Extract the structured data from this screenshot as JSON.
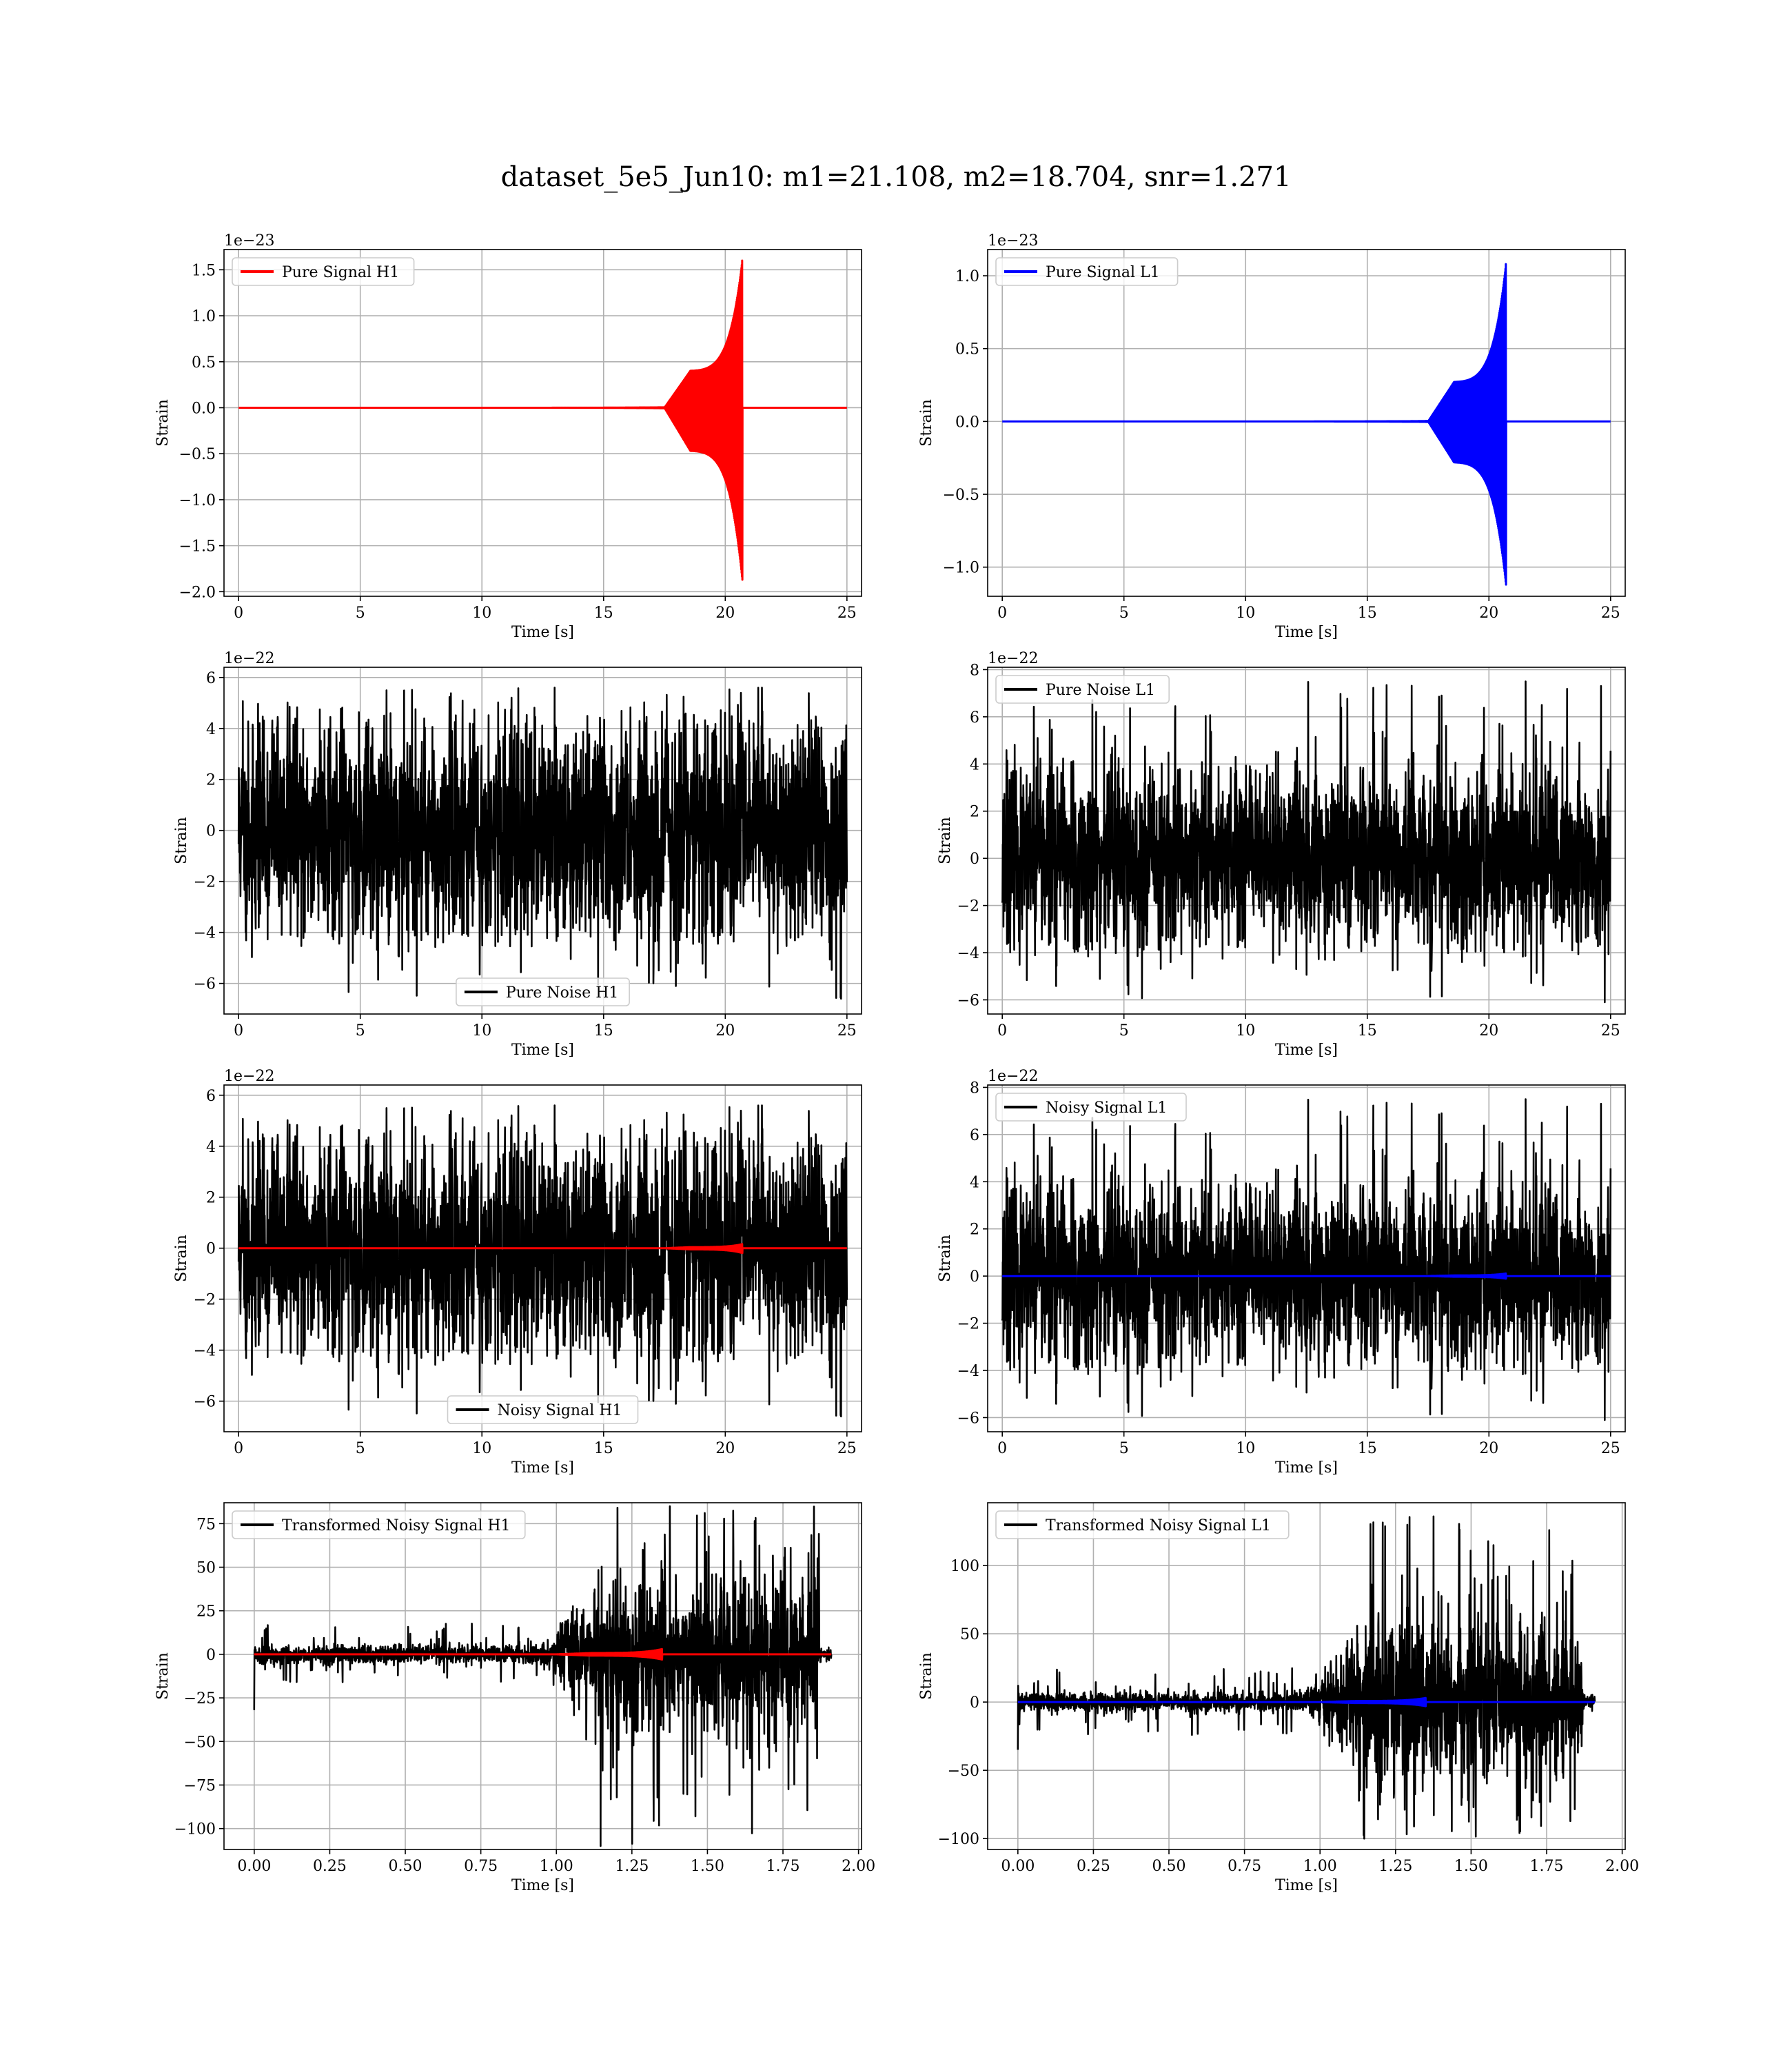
{
  "figure": {
    "title": "dataset_5e5_Jun10: m1=21.108, m2=18.704, snr=1.271"
  },
  "chart_data": [
    {
      "id": "pure-signal-h1",
      "type": "line",
      "xlabel": "Time [s]",
      "ylabel": "Strain",
      "exponent_label": "1e−23",
      "xlim": [
        -0.6,
        25.6
      ],
      "ylim": [
        -2.05,
        1.72
      ],
      "xticks": [
        0,
        5,
        10,
        15,
        20,
        25
      ],
      "xtick_labels": [
        "0",
        "5",
        "10",
        "15",
        "20",
        "25"
      ],
      "yticks": [
        -2.0,
        -1.5,
        -1.0,
        -0.5,
        0.0,
        0.5,
        1.0,
        1.5
      ],
      "ytick_labels": [
        "−2.0",
        "−1.5",
        "−1.0",
        "−0.5",
        "0.0",
        "0.5",
        "1.0",
        "1.5"
      ],
      "grid": true,
      "legend": "upper left",
      "series": [
        {
          "name": "Pure Signal H1",
          "color": "#ff0000",
          "kind": "chirp",
          "x_range": [
            0,
            25
          ],
          "merger_time": 20.7,
          "peak_pos": 1.6,
          "peak_neg": -1.87,
          "envelope_start": 17.5
        }
      ]
    },
    {
      "id": "pure-signal-l1",
      "type": "line",
      "xlabel": "Time [s]",
      "ylabel": "Strain",
      "exponent_label": "1e−23",
      "xlim": [
        -0.6,
        25.6
      ],
      "ylim": [
        -1.2,
        1.18
      ],
      "xticks": [
        0,
        5,
        10,
        15,
        20,
        25
      ],
      "xtick_labels": [
        "0",
        "5",
        "10",
        "15",
        "20",
        "25"
      ],
      "yticks": [
        -1.0,
        -0.5,
        0.0,
        0.5,
        1.0
      ],
      "ytick_labels": [
        "−1.0",
        "−0.5",
        "0.0",
        "0.5",
        "1.0"
      ],
      "grid": true,
      "legend": "upper left",
      "series": [
        {
          "name": "Pure Signal L1",
          "color": "#0000ff",
          "kind": "chirp",
          "x_range": [
            0,
            25
          ],
          "merger_time": 20.7,
          "peak_pos": 1.08,
          "peak_neg": -1.12,
          "envelope_start": 17.5
        }
      ]
    },
    {
      "id": "pure-noise-h1",
      "type": "line",
      "xlabel": "Time [s]",
      "ylabel": "Strain",
      "exponent_label": "1e−22",
      "xlim": [
        -0.6,
        25.6
      ],
      "ylim": [
        -7.2,
        6.4
      ],
      "xticks": [
        0,
        5,
        10,
        15,
        20,
        25
      ],
      "xtick_labels": [
        "0",
        "5",
        "10",
        "15",
        "20",
        "25"
      ],
      "yticks": [
        -6,
        -4,
        -2,
        0,
        2,
        4,
        6
      ],
      "ytick_labels": [
        "−6",
        "−4",
        "−2",
        "0",
        "2",
        "4",
        "6"
      ],
      "grid": true,
      "legend": "lower center",
      "series": [
        {
          "name": "Pure Noise H1",
          "color": "#000000",
          "kind": "noise",
          "x_range": [
            0,
            25
          ],
          "band": 3.8,
          "max": 5.6,
          "min": -6.6,
          "seed": 11
        }
      ]
    },
    {
      "id": "pure-noise-l1",
      "type": "line",
      "xlabel": "Time [s]",
      "ylabel": "Strain",
      "exponent_label": "1e−22",
      "xlim": [
        -0.6,
        25.6
      ],
      "ylim": [
        -6.6,
        8.1
      ],
      "xticks": [
        0,
        5,
        10,
        15,
        20,
        25
      ],
      "xtick_labels": [
        "0",
        "5",
        "10",
        "15",
        "20",
        "25"
      ],
      "yticks": [
        -6,
        -4,
        -2,
        0,
        2,
        4,
        6,
        8
      ],
      "ytick_labels": [
        "−6",
        "−4",
        "−2",
        "0",
        "2",
        "4",
        "6",
        "8"
      ],
      "grid": true,
      "legend": "upper left",
      "series": [
        {
          "name": "Pure Noise L1",
          "color": "#000000",
          "kind": "noise",
          "x_range": [
            0,
            25
          ],
          "band": 3.4,
          "max": 7.5,
          "min": -6.1,
          "seed": 23
        }
      ]
    },
    {
      "id": "noisy-signal-h1",
      "type": "line",
      "xlabel": "Time [s]",
      "ylabel": "Strain",
      "exponent_label": "1e−22",
      "xlim": [
        -0.6,
        25.6
      ],
      "ylim": [
        -7.2,
        6.4
      ],
      "xticks": [
        0,
        5,
        10,
        15,
        20,
        25
      ],
      "xtick_labels": [
        "0",
        "5",
        "10",
        "15",
        "20",
        "25"
      ],
      "yticks": [
        -6,
        -4,
        -2,
        0,
        2,
        4,
        6
      ],
      "ytick_labels": [
        "−6",
        "−4",
        "−2",
        "0",
        "2",
        "4",
        "6"
      ],
      "grid": true,
      "legend": "lower center",
      "series": [
        {
          "name": "Noisy Signal H1",
          "color": "#000000",
          "kind": "noise",
          "x_range": [
            0,
            25
          ],
          "band": 3.8,
          "max": 5.6,
          "min": -6.6,
          "seed": 11
        },
        {
          "name": "",
          "color": "#ff0000",
          "kind": "chirp",
          "x_range": [
            0,
            25
          ],
          "merger_time": 20.7,
          "peak_pos": 0.16,
          "peak_neg": -0.19,
          "envelope_start": 17.5
        }
      ]
    },
    {
      "id": "noisy-signal-l1",
      "type": "line",
      "xlabel": "Time [s]",
      "ylabel": "Strain",
      "exponent_label": "1e−22",
      "xlim": [
        -0.6,
        25.6
      ],
      "ylim": [
        -6.6,
        8.1
      ],
      "xticks": [
        0,
        5,
        10,
        15,
        20,
        25
      ],
      "xtick_labels": [
        "0",
        "5",
        "10",
        "15",
        "20",
        "25"
      ],
      "yticks": [
        -6,
        -4,
        -2,
        0,
        2,
        4,
        6,
        8
      ],
      "ytick_labels": [
        "−6",
        "−4",
        "−2",
        "0",
        "2",
        "4",
        "6",
        "8"
      ],
      "grid": true,
      "legend": "upper left",
      "series": [
        {
          "name": "Noisy Signal L1",
          "color": "#000000",
          "kind": "noise",
          "x_range": [
            0,
            25
          ],
          "band": 3.4,
          "max": 7.5,
          "min": -6.1,
          "seed": 23
        },
        {
          "name": "",
          "color": "#0000ff",
          "kind": "chirp",
          "x_range": [
            0,
            25
          ],
          "merger_time": 20.7,
          "peak_pos": 0.11,
          "peak_neg": -0.11,
          "envelope_start": 17.5
        }
      ]
    },
    {
      "id": "transformed-noisy-signal-h1",
      "type": "line",
      "xlabel": "Time [s]",
      "ylabel": "Strain",
      "exponent_label": "",
      "xlim": [
        -0.1,
        2.01
      ],
      "ylim": [
        -112,
        87
      ],
      "xticks": [
        0.0,
        0.25,
        0.5,
        0.75,
        1.0,
        1.25,
        1.5,
        1.75,
        2.0
      ],
      "xtick_labels": [
        "0.00",
        "0.25",
        "0.50",
        "0.75",
        "1.00",
        "1.25",
        "1.50",
        "1.75",
        "2.00"
      ],
      "yticks": [
        -100,
        -75,
        -50,
        -25,
        0,
        25,
        50,
        75
      ],
      "ytick_labels": [
        "−100",
        "−75",
        "−50",
        "−25",
        "0",
        "25",
        "50",
        "75"
      ],
      "grid": true,
      "legend": "upper left",
      "series": [
        {
          "name": "Transformed Noisy Signal H1",
          "color": "#000000",
          "kind": "whitened",
          "x_range": [
            0,
            1.91
          ],
          "cutoff": 1.87,
          "rise_start": 0.95,
          "rise_end": 1.12,
          "low_band": 5,
          "high_band": 35,
          "max": 85,
          "min": -110,
          "start_spike": -32,
          "seed": 5
        },
        {
          "name": "",
          "color": "#ff0000",
          "kind": "chirp",
          "x_range": [
            0,
            1.91
          ],
          "merger_time": 1.35,
          "peak_pos": 3.0,
          "peak_neg": -3.0,
          "envelope_start": 1.0
        }
      ]
    },
    {
      "id": "transformed-noisy-signal-l1",
      "type": "line",
      "xlabel": "Time [s]",
      "ylabel": "Strain",
      "exponent_label": "",
      "xlim": [
        -0.1,
        2.01
      ],
      "ylim": [
        -108,
        146
      ],
      "xticks": [
        0.0,
        0.25,
        0.5,
        0.75,
        1.0,
        1.25,
        1.5,
        1.75,
        2.0
      ],
      "xtick_labels": [
        "0.00",
        "0.25",
        "0.50",
        "0.75",
        "1.00",
        "1.25",
        "1.50",
        "1.75",
        "2.00"
      ],
      "yticks": [
        -100,
        -50,
        0,
        50,
        100
      ],
      "ytick_labels": [
        "−100",
        "−50",
        "0",
        "50",
        "100"
      ],
      "grid": true,
      "legend": "upper left",
      "series": [
        {
          "name": "Transformed Noisy Signal L1",
          "color": "#000000",
          "kind": "whitened",
          "x_range": [
            0,
            1.91
          ],
          "cutoff": 1.87,
          "rise_start": 0.95,
          "rise_end": 1.12,
          "low_band": 7,
          "high_band": 45,
          "max": 136,
          "min": -100,
          "start_spike": -35,
          "seed": 9
        },
        {
          "name": "",
          "color": "#0000ff",
          "kind": "chirp",
          "x_range": [
            0,
            1.91
          ],
          "merger_time": 1.35,
          "peak_pos": 3.0,
          "peak_neg": -3.0,
          "envelope_start": 1.0
        }
      ]
    }
  ]
}
